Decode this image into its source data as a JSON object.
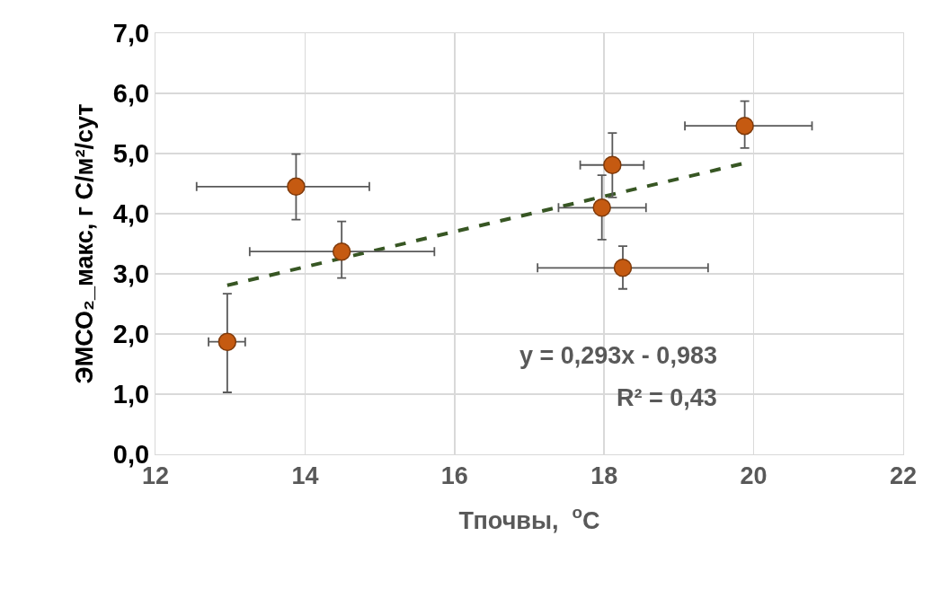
{
  "chart_data": {
    "type": "scatter",
    "xlabel": "Тпочвы,  $^{o}$С",
    "ylabel": "ЭМСО₂_макс, г С/м²/сут",
    "series": [
      {
        "type": "scatter",
        "color": "#c55a11",
        "marker": "circle",
        "x": [
          12.96,
          13.88,
          14.49,
          17.97,
          18.11,
          18.25,
          19.88
        ],
        "values": [
          1.87,
          4.45,
          3.37,
          4.1,
          4.81,
          3.1,
          5.46
        ],
        "errors": [
          [
            1.03,
            2.67
          ],
          [
            3.9,
            4.99
          ],
          [
            2.93,
            3.87
          ],
          [
            3.57,
            4.64
          ],
          [
            4.27,
            5.34
          ],
          [
            2.75,
            3.46
          ],
          [
            5.09,
            5.87
          ]
        ],
        "xerrors": [
          [
            12.71,
            13.2
          ],
          [
            12.55,
            14.86
          ],
          [
            13.26,
            15.73
          ],
          [
            17.39,
            18.56
          ],
          [
            17.68,
            18.53
          ],
          [
            17.11,
            19.39
          ],
          [
            19.08,
            20.78
          ]
        ]
      },
      {
        "type": "line",
        "color": "#375623",
        "line_style": "dashed",
        "marker": "none",
        "x": [
          12.96,
          19.88
        ],
        "values": [
          2.81,
          4.84
        ]
      }
    ],
    "annotations": [
      "y = 0,293x - 0,983",
      "R² = 0,43"
    ],
    "xlim": [
      12,
      22
    ],
    "xticks": [
      12,
      14,
      16,
      18,
      20,
      22
    ],
    "ylim": [
      0,
      7
    ],
    "yticks": [
      {
        "value": 0,
        "label": "0,0"
      },
      {
        "value": 1,
        "label": "1,0"
      },
      {
        "value": 2,
        "label": "2,0"
      },
      {
        "value": 3,
        "label": "3,0"
      },
      {
        "value": 4,
        "label": "4,0"
      },
      {
        "value": 5,
        "label": "5,0"
      },
      {
        "value": 6,
        "label": "6,0"
      },
      {
        "value": 7,
        "label": "7,0"
      }
    ],
    "grid": true,
    "legend": false
  }
}
